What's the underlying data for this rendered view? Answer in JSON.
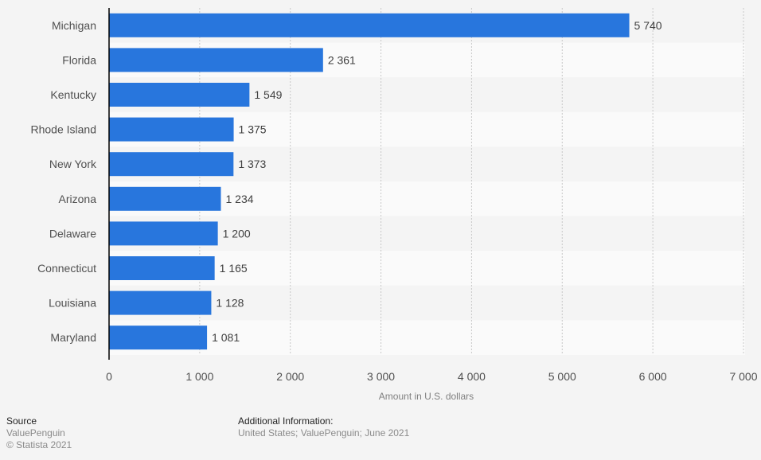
{
  "chart_data": {
    "type": "bar",
    "orientation": "horizontal",
    "title": "",
    "categories": [
      "Michigan",
      "Florida",
      "Kentucky",
      "Rhode Island",
      "New York",
      "Arizona",
      "Delaware",
      "Connecticut",
      "Louisiana",
      "Maryland"
    ],
    "values": [
      5740,
      2361,
      1549,
      1375,
      1373,
      1234,
      1200,
      1165,
      1128,
      1081
    ],
    "value_labels": [
      "5 740",
      "2 361",
      "1 549",
      "1 375",
      "1 373",
      "1 234",
      "1 200",
      "1 165",
      "1 128",
      "1 081"
    ],
    "xlabel": "Amount in U.S. dollars",
    "ylabel": "",
    "xlim": [
      0,
      7000
    ],
    "x_ticks": [
      0,
      1000,
      2000,
      3000,
      4000,
      5000,
      6000,
      7000
    ],
    "x_tick_labels": [
      "0",
      "1 000",
      "2 000",
      "3 000",
      "4 000",
      "5 000",
      "6 000",
      "7 000"
    ],
    "grid": true,
    "legend": "none",
    "colors": {
      "bar": "#2876dd",
      "band_a": "#f4f4f4",
      "band_b": "#fafafa",
      "grid": "#c8c8c8",
      "axis": "#000000"
    }
  },
  "footer": {
    "source_heading": "Source",
    "source_name": "ValuePenguin",
    "copyright": "© Statista 2021",
    "info_heading": "Additional Information:",
    "info_text": "United States; ValuePenguin; June 2021"
  }
}
